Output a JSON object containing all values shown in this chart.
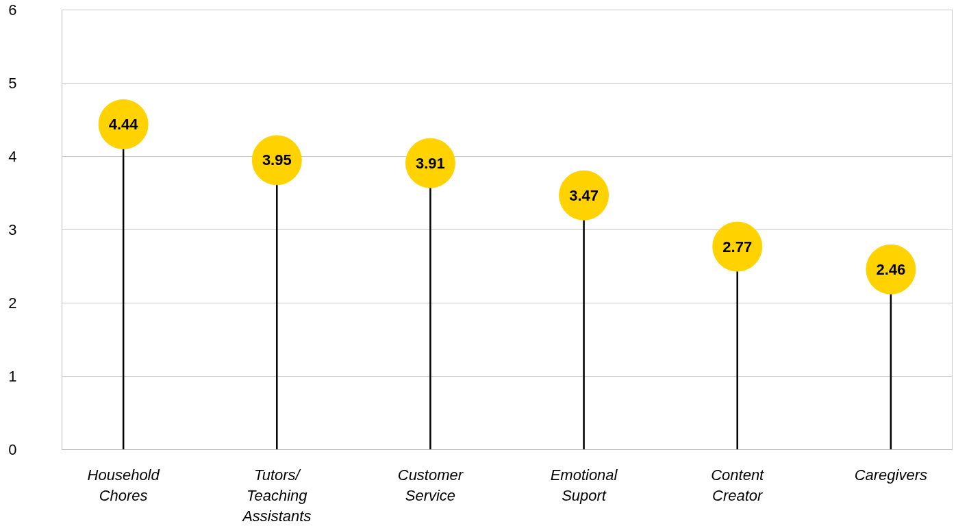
{
  "chart_data": {
    "type": "lollipop",
    "categories": [
      "Household\nChores",
      "Tutors/\nTeaching\nAssistants",
      "Customer\nService",
      "Emotional\nSuport",
      "Content\nCreator",
      "Caregivers"
    ],
    "values": [
      4.44,
      3.95,
      3.91,
      3.47,
      2.77,
      2.46
    ],
    "color": "#ffd200",
    "data_labels": true,
    "marker": "circle",
    "ylim": [
      0,
      6
    ],
    "yticks": [
      0,
      1,
      2,
      3,
      4,
      5,
      6
    ],
    "grid": "y"
  }
}
